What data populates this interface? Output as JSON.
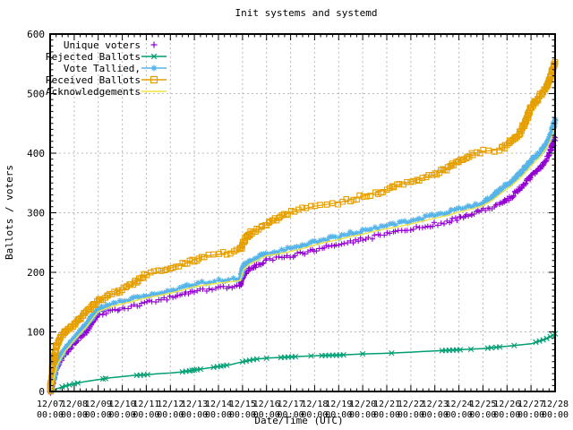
{
  "chart_data": {
    "type": "line",
    "title": "Init systems and systemd",
    "xlabel": "Date/Time (UTC)",
    "ylabel": "Ballots / voters",
    "ylim": [
      0,
      600
    ],
    "y_tick_interval": 100,
    "y_minor_tick_interval": 10,
    "y_tick_labels": [
      "0",
      "100",
      "200",
      "300",
      "400",
      "500",
      "600"
    ],
    "x_tick_labels": [
      "12/07",
      "12/08",
      "12/09",
      "12/10",
      "12/11",
      "12/12",
      "12/13",
      "12/14",
      "12/15",
      "12/16",
      "12/17",
      "12/18",
      "12/19",
      "12/20",
      "12/21",
      "12/22",
      "12/23",
      "12/24",
      "12/25",
      "12/26",
      "12/27",
      "12/28"
    ],
    "x_tick_sublabel": "00:00",
    "x_days_span": 21,
    "x_minor_ticks_per_day": 4,
    "grid": true,
    "legend_position": "top-left",
    "colors": {
      "background": "#ffffff",
      "axis": "#000000",
      "grid": "#b9b9b9",
      "text": "#000000"
    },
    "series": [
      {
        "name": "Unique voters",
        "color": "#9400d3",
        "marker": "plus",
        "line": false,
        "dense_markers": true,
        "points": [
          [
            0,
            0
          ],
          [
            0.15,
            20
          ],
          [
            0.3,
            42
          ],
          [
            0.6,
            62
          ],
          [
            1,
            82
          ],
          [
            1.5,
            101
          ],
          [
            1.8,
            118
          ],
          [
            2,
            128
          ],
          [
            2.5,
            135
          ],
          [
            3,
            140
          ],
          [
            3.5,
            144
          ],
          [
            4,
            149
          ],
          [
            4.5,
            153
          ],
          [
            5,
            157
          ],
          [
            5.5,
            162
          ],
          [
            6,
            168
          ],
          [
            6.5,
            170
          ],
          [
            7,
            173
          ],
          [
            7.9,
            177
          ],
          [
            8.05,
            196
          ],
          [
            8.3,
            206
          ],
          [
            8.6,
            212
          ],
          [
            9,
            220
          ],
          [
            9.5,
            224
          ],
          [
            10,
            227
          ],
          [
            10.5,
            232
          ],
          [
            11,
            237
          ],
          [
            11.5,
            242
          ],
          [
            12,
            247
          ],
          [
            12.5,
            251
          ],
          [
            13,
            256
          ],
          [
            13.5,
            260
          ],
          [
            14,
            264
          ],
          [
            14.5,
            268
          ],
          [
            15,
            272
          ],
          [
            15.5,
            276
          ],
          [
            16,
            281
          ],
          [
            16.5,
            285
          ],
          [
            17,
            291
          ],
          [
            17.5,
            297
          ],
          [
            18,
            305
          ],
          [
            18.4,
            309
          ],
          [
            18.8,
            316
          ],
          [
            19.2,
            327
          ],
          [
            19.6,
            343
          ],
          [
            20,
            361
          ],
          [
            20.4,
            377
          ],
          [
            20.7,
            395
          ],
          [
            20.85,
            408
          ],
          [
            21,
            426
          ]
        ]
      },
      {
        "name": "Rejected Ballots",
        "color": "#009e73",
        "marker": "cross",
        "line": true,
        "dense_markers": false,
        "points": [
          [
            0,
            0
          ],
          [
            0.3,
            5
          ],
          [
            0.7,
            10
          ],
          [
            1,
            13
          ],
          [
            1.5,
            17
          ],
          [
            2,
            20
          ],
          [
            2.5,
            23
          ],
          [
            3,
            25
          ],
          [
            3.5,
            27
          ],
          [
            4,
            28
          ],
          [
            4.5,
            30
          ],
          [
            5,
            31
          ],
          [
            5.5,
            33
          ],
          [
            6,
            36
          ],
          [
            6.5,
            39
          ],
          [
            7,
            42
          ],
          [
            7.5,
            45
          ],
          [
            8,
            50
          ],
          [
            8.5,
            54
          ],
          [
            9,
            56
          ],
          [
            9.5,
            57
          ],
          [
            10,
            58
          ],
          [
            10.5,
            59
          ],
          [
            11,
            60
          ],
          [
            12,
            61
          ],
          [
            12.5,
            62
          ],
          [
            13,
            63
          ],
          [
            14,
            64
          ],
          [
            14.5,
            65
          ],
          [
            15,
            66
          ],
          [
            15.5,
            67
          ],
          [
            16,
            68
          ],
          [
            17,
            70
          ],
          [
            17.5,
            71
          ],
          [
            18,
            72
          ],
          [
            18.5,
            74
          ],
          [
            19,
            76
          ],
          [
            19.5,
            78
          ],
          [
            20,
            80
          ],
          [
            20.3,
            84
          ],
          [
            20.6,
            88
          ],
          [
            20.8,
            92
          ],
          [
            21,
            97
          ]
        ],
        "marker_days": [
          0.5,
          0.65,
          0.8,
          1.0,
          1.15,
          2.2,
          2.3,
          3.6,
          3.75,
          3.9,
          4.05,
          5.5,
          5.65,
          5.8,
          5.9,
          6.0,
          6.1,
          6.25,
          6.8,
          6.95,
          7.1,
          7.2,
          7.35,
          8.0,
          8.15,
          8.3,
          8.45,
          8.6,
          9.0,
          9.6,
          9.75,
          9.9,
          10.05,
          10.2,
          10.85,
          11.3,
          11.45,
          11.6,
          11.75,
          11.9,
          12.05,
          12.2,
          13.0,
          14.2,
          16.3,
          16.45,
          16.6,
          16.75,
          16.9,
          17.05,
          17.5,
          18.2,
          18.35,
          18.55,
          18.7,
          19.3,
          20.2,
          20.35,
          20.5,
          20.65,
          20.8,
          20.9,
          21.0
        ]
      },
      {
        "name": "Vote Tallied,",
        "color": "#56b4e9",
        "marker": "asterisk",
        "line": true,
        "dense_markers": true,
        "points": [
          [
            0,
            0
          ],
          [
            0.15,
            24
          ],
          [
            0.3,
            48
          ],
          [
            0.6,
            70
          ],
          [
            1,
            90
          ],
          [
            1.5,
            112
          ],
          [
            1.8,
            128
          ],
          [
            2,
            138
          ],
          [
            2.5,
            146
          ],
          [
            3,
            151
          ],
          [
            3.5,
            156
          ],
          [
            4,
            161
          ],
          [
            4.5,
            165
          ],
          [
            5,
            169
          ],
          [
            5.5,
            174
          ],
          [
            6,
            180
          ],
          [
            6.5,
            183
          ],
          [
            7,
            186
          ],
          [
            7.9,
            190
          ],
          [
            8.05,
            210
          ],
          [
            8.3,
            219
          ],
          [
            8.6,
            225
          ],
          [
            9,
            233
          ],
          [
            9.5,
            236
          ],
          [
            10,
            240
          ],
          [
            10.5,
            245
          ],
          [
            11,
            251
          ],
          [
            11.5,
            256
          ],
          [
            12,
            260
          ],
          [
            12.5,
            265
          ],
          [
            13,
            269
          ],
          [
            13.5,
            274
          ],
          [
            14,
            278
          ],
          [
            14.5,
            282
          ],
          [
            15,
            286
          ],
          [
            15.5,
            291
          ],
          [
            16,
            296
          ],
          [
            16.5,
            300
          ],
          [
            17,
            306
          ],
          [
            17.5,
            311
          ],
          [
            18,
            317
          ],
          [
            18.4,
            327
          ],
          [
            18.8,
            341
          ],
          [
            19.2,
            352
          ],
          [
            19.6,
            368
          ],
          [
            20,
            386
          ],
          [
            20.4,
            402
          ],
          [
            20.7,
            420
          ],
          [
            20.85,
            435
          ],
          [
            21,
            455
          ]
        ]
      },
      {
        "name": "Received Ballots",
        "color": "#e69f00",
        "marker": "square",
        "line": true,
        "dense_markers": true,
        "points": [
          [
            0,
            0
          ],
          [
            0.1,
            40
          ],
          [
            0.25,
            75
          ],
          [
            0.45,
            92
          ],
          [
            0.7,
            103
          ],
          [
            1,
            113
          ],
          [
            1.5,
            133
          ],
          [
            2,
            151
          ],
          [
            2.5,
            162
          ],
          [
            3,
            171
          ],
          [
            3.5,
            182
          ],
          [
            4,
            196
          ],
          [
            4.5,
            201
          ],
          [
            5,
            207
          ],
          [
            5.5,
            213
          ],
          [
            6,
            221
          ],
          [
            6.4,
            227
          ],
          [
            7,
            230
          ],
          [
            7.5,
            234
          ],
          [
            7.9,
            238
          ],
          [
            8.05,
            252
          ],
          [
            8.3,
            265
          ],
          [
            8.6,
            272
          ],
          [
            9,
            280
          ],
          [
            9.5,
            291
          ],
          [
            10,
            301
          ],
          [
            10.5,
            306
          ],
          [
            11,
            311
          ],
          [
            11.5,
            314
          ],
          [
            12,
            317
          ],
          [
            12.5,
            322
          ],
          [
            13,
            328
          ],
          [
            13.5,
            333
          ],
          [
            14,
            339
          ],
          [
            14.5,
            347
          ],
          [
            15,
            352
          ],
          [
            15.5,
            358
          ],
          [
            16,
            364
          ],
          [
            16.5,
            374
          ],
          [
            17,
            386
          ],
          [
            17.6,
            399
          ],
          [
            18,
            403
          ],
          [
            18.7,
            406
          ],
          [
            19,
            414
          ],
          [
            19.5,
            432
          ],
          [
            19.8,
            455
          ],
          [
            20,
            477
          ],
          [
            20.3,
            492
          ],
          [
            20.6,
            510
          ],
          [
            20.8,
            528
          ],
          [
            21,
            553
          ]
        ]
      },
      {
        "name": "Acknowledgements",
        "color": "#f0e442",
        "marker": "none",
        "line": true,
        "dense_markers": false,
        "points": [
          [
            0,
            0
          ],
          [
            0.15,
            22
          ],
          [
            0.3,
            45
          ],
          [
            0.6,
            66
          ],
          [
            1,
            86
          ],
          [
            1.5,
            108
          ],
          [
            1.8,
            124
          ],
          [
            2,
            134
          ],
          [
            2.5,
            142
          ],
          [
            3,
            147
          ],
          [
            3.5,
            152
          ],
          [
            4,
            157
          ],
          [
            4.5,
            161
          ],
          [
            5,
            165
          ],
          [
            5.5,
            170
          ],
          [
            6,
            176
          ],
          [
            6.5,
            179
          ],
          [
            7,
            182
          ],
          [
            7.9,
            186
          ],
          [
            8.05,
            205
          ],
          [
            8.3,
            214
          ],
          [
            8.6,
            220
          ],
          [
            9,
            228
          ],
          [
            9.5,
            231
          ],
          [
            10,
            235
          ],
          [
            10.5,
            240
          ],
          [
            11,
            246
          ],
          [
            11.5,
            251
          ],
          [
            12,
            255
          ],
          [
            12.5,
            260
          ],
          [
            13,
            264
          ],
          [
            13.5,
            269
          ],
          [
            14,
            273
          ],
          [
            14.5,
            277
          ],
          [
            15,
            281
          ],
          [
            15.5,
            286
          ],
          [
            16,
            291
          ],
          [
            16.5,
            295
          ],
          [
            17,
            301
          ],
          [
            17.5,
            306
          ],
          [
            18,
            312
          ],
          [
            18.4,
            321
          ],
          [
            18.8,
            334
          ],
          [
            19.2,
            346
          ],
          [
            19.6,
            360
          ],
          [
            20,
            378
          ],
          [
            20.4,
            395
          ],
          [
            20.7,
            412
          ],
          [
            20.85,
            426
          ],
          [
            21,
            445
          ]
        ]
      }
    ]
  }
}
